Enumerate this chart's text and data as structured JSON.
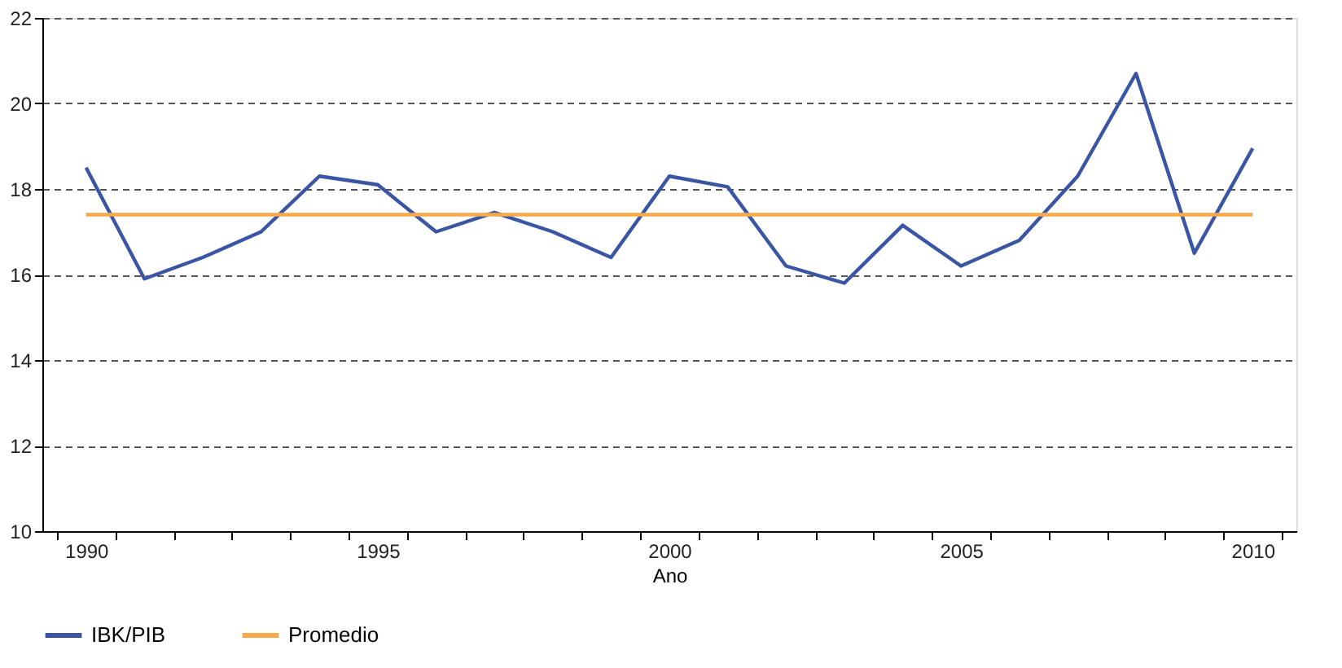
{
  "chart_data": {
    "type": "line",
    "xlabel": "Ano",
    "categories": [
      "1990",
      null,
      null,
      null,
      null,
      "1995",
      null,
      null,
      null,
      null,
      "2000",
      null,
      null,
      null,
      null,
      "2005",
      null,
      null,
      null,
      null,
      "2010"
    ],
    "series": [
      {
        "name": "IBK/PIB",
        "color": "#3a55a4",
        "values": [
          18.5,
          15.9,
          16.4,
          17.0,
          18.3,
          18.1,
          17.0,
          17.45,
          17.0,
          16.4,
          18.3,
          18.05,
          16.2,
          15.8,
          17.15,
          16.2,
          16.8,
          18.3,
          20.7,
          16.5,
          18.95
        ]
      },
      {
        "name": "Promedio",
        "color": "#f5a94a",
        "values": [
          17.4,
          17.4,
          17.4,
          17.4,
          17.4,
          17.4,
          17.4,
          17.4,
          17.4,
          17.4,
          17.4,
          17.4,
          17.4,
          17.4,
          17.4,
          17.4,
          17.4,
          17.4,
          17.4,
          17.4,
          17.4
        ]
      }
    ],
    "ylim": [
      10,
      22
    ],
    "yticks": [
      10,
      12,
      14,
      16,
      18,
      20,
      22
    ],
    "grid": "y",
    "legend": "bottom",
    "marker": "none",
    "line_style": "solid"
  }
}
